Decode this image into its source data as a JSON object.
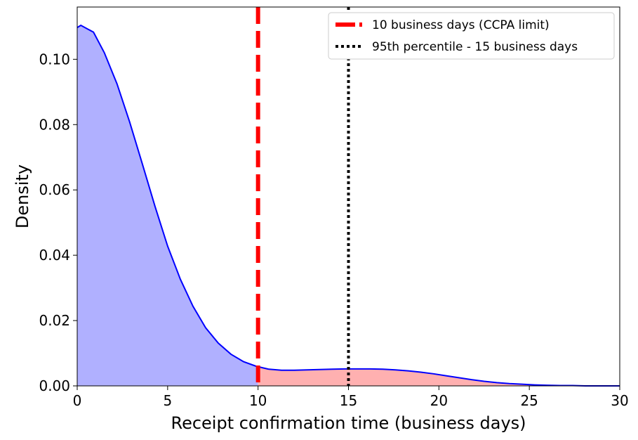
{
  "chart_data": {
    "type": "area",
    "xlabel": "Receipt confirmation time (business days)",
    "ylabel": "Density",
    "xlim": [
      0,
      30
    ],
    "ylim": [
      0,
      0.116
    ],
    "xticks": [
      0,
      5,
      10,
      15,
      20,
      25,
      30
    ],
    "yticks": [
      0.0,
      0.02,
      0.04,
      0.06,
      0.08,
      0.1
    ],
    "xtick_labels": [
      "0",
      "5",
      "10",
      "15",
      "20",
      "25",
      "30"
    ],
    "ytick_labels": [
      "0.00",
      "0.02",
      "0.04",
      "0.06",
      "0.08",
      "0.10"
    ],
    "grid": false,
    "legend_placement": "top-right",
    "series": [
      {
        "style": "kde-line",
        "color": "#0000ff",
        "fill_below_limit": "#b0b0ff",
        "fill_above_limit": "#ffb0b0",
        "x": [
          0,
          0.2,
          0.9,
          1.5,
          2.2,
          2.9,
          3.6,
          4.3,
          5.0,
          5.7,
          6.4,
          7.1,
          7.8,
          8.5,
          9.2,
          9.9,
          10.6,
          11.3,
          12.0,
          12.7,
          13.4,
          14.1,
          14.8,
          15.5,
          16.2,
          16.9,
          17.6,
          18.3,
          19.0,
          19.7,
          20.4,
          21.1,
          21.8,
          22.5,
          23.2,
          23.9,
          24.6,
          25.3,
          26.0,
          26.7,
          27.4,
          28.1,
          28.8,
          29.5,
          30.0
        ],
        "y": [
          0.1097,
          0.1104,
          0.1083,
          0.102,
          0.0925,
          0.0808,
          0.068,
          0.055,
          0.0428,
          0.0327,
          0.0244,
          0.0178,
          0.0131,
          0.0097,
          0.0074,
          0.006,
          0.0051,
          0.0048,
          0.0048,
          0.0049,
          0.005,
          0.0051,
          0.0052,
          0.0052,
          0.0052,
          0.0051,
          0.0049,
          0.0046,
          0.0042,
          0.0037,
          0.0031,
          0.0025,
          0.0019,
          0.0014,
          0.001,
          0.0007,
          0.0005,
          0.0003,
          0.0002,
          0.0001,
          0.0001,
          0.0,
          0.0,
          0.0,
          0.0
        ]
      }
    ],
    "reference_lines": [
      {
        "name": "10 business days (CCPA limit)",
        "x": 10,
        "style": "dashed",
        "color": "#ff0000"
      },
      {
        "name": "95th percentile - 15 business days",
        "x": 15,
        "style": "dotted",
        "color": "#000000"
      }
    ]
  }
}
